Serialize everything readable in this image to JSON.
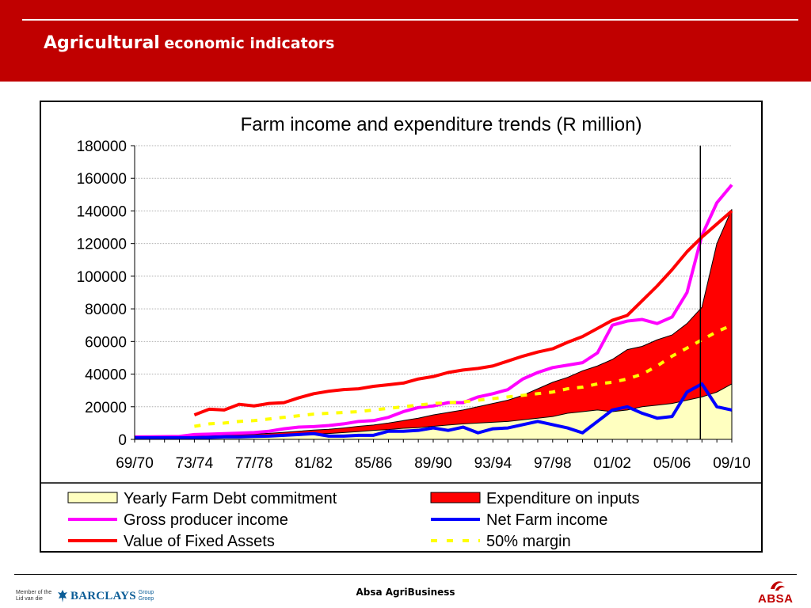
{
  "slide": {
    "title_main": "Agricultural",
    "title_sub": "economic indicators",
    "footer_text": "Absa AgriBusiness",
    "barclays_member": "Member of the\nLid van die",
    "barclays_name": "BARCLAYS",
    "barclays_group": "Group\nGroep",
    "absa_logo": "ABSA",
    "colors": {
      "header": "#c00000",
      "barclays_blue": "#0b5d97"
    }
  },
  "chart_data": {
    "type": "line",
    "title": "Farm income and expenditure trends (R million)",
    "xlabel": "",
    "ylabel": "",
    "ylim": [
      0,
      180000
    ],
    "yticks": [
      0,
      20000,
      40000,
      60000,
      80000,
      100000,
      120000,
      140000,
      160000,
      180000
    ],
    "xticks": [
      "69/70",
      "73/74",
      "77/78",
      "81/82",
      "85/86",
      "89/90",
      "93/94",
      "97/98",
      "01/02",
      "05/06",
      "09/10"
    ],
    "categories": [
      "69/70",
      "70/71",
      "71/72",
      "72/73",
      "73/74",
      "74/75",
      "75/76",
      "76/77",
      "77/78",
      "78/79",
      "79/80",
      "80/81",
      "81/82",
      "82/83",
      "83/84",
      "84/85",
      "85/86",
      "86/87",
      "87/88",
      "88/89",
      "89/90",
      "90/91",
      "91/92",
      "92/93",
      "93/94",
      "94/95",
      "95/96",
      "96/97",
      "97/98",
      "98/99",
      "99/00",
      "00/01",
      "01/02",
      "02/03",
      "03/04",
      "04/05",
      "05/06",
      "06/07",
      "07/08",
      "08/09",
      "09/10"
    ],
    "marker_line_at": "07/08",
    "grid": "horizontal",
    "legend_position": "bottom",
    "series": [
      {
        "name": "Yearly Farm Debt commitment",
        "kind": "area",
        "color": "#ffffc0",
        "values": [
          1000,
          1000,
          1000,
          1000,
          1200,
          1300,
          1500,
          1700,
          1900,
          2100,
          2400,
          2800,
          3200,
          3600,
          4200,
          4800,
          5500,
          6000,
          6800,
          7200,
          8000,
          8800,
          9500,
          10000,
          10500,
          11000,
          12000,
          13000,
          14000,
          16000,
          17000,
          18000,
          17000,
          18000,
          20000,
          21000,
          22000,
          24000,
          26000,
          29000,
          34000
        ]
      },
      {
        "name": "Expenditure on inputs",
        "kind": "area",
        "color": "#ff0000",
        "values": [
          1500,
          1600,
          1700,
          1800,
          2000,
          2300,
          2600,
          3000,
          3300,
          3700,
          4300,
          5000,
          5700,
          6200,
          7000,
          8000,
          8800,
          10000,
          11500,
          13000,
          15000,
          16500,
          18000,
          20000,
          22000,
          24000,
          27000,
          31000,
          35000,
          38000,
          42000,
          45000,
          49000,
          55000,
          57000,
          61000,
          64000,
          71000,
          81000,
          120000,
          141000
        ]
      },
      {
        "name": "Gross producer income",
        "kind": "line",
        "color": "#ff00ff",
        "values": [
          1500,
          1600,
          1700,
          1800,
          3000,
          3200,
          3500,
          3800,
          4200,
          5000,
          6500,
          7500,
          7800,
          8500,
          9500,
          11000,
          11500,
          13500,
          17000,
          19500,
          20500,
          22500,
          22500,
          26000,
          28000,
          30500,
          37000,
          41000,
          44000,
          45500,
          47000,
          53000,
          70000,
          72500,
          73500,
          71000,
          75000,
          90000,
          125000,
          145000,
          156000
        ]
      },
      {
        "name": "Net Farm income",
        "kind": "line",
        "color": "#0000ff",
        "values": [
          1000,
          1000,
          1000,
          1000,
          1000,
          1200,
          1500,
          1500,
          1800,
          2000,
          2500,
          3000,
          3500,
          2000,
          2000,
          2500,
          2500,
          5000,
          5000,
          5500,
          7000,
          5500,
          7500,
          4000,
          6500,
          7000,
          9000,
          11000,
          9000,
          7000,
          4000,
          11000,
          18000,
          20000,
          16000,
          13000,
          14000,
          29000,
          34000,
          20000,
          18000
        ]
      },
      {
        "name": "Value of Fixed Assets",
        "kind": "line",
        "color": "#ff0000",
        "values": [
          null,
          null,
          null,
          null,
          15000,
          18500,
          18000,
          21500,
          20500,
          22000,
          22500,
          25500,
          28000,
          29500,
          30500,
          31000,
          32500,
          33500,
          34500,
          37000,
          38500,
          41000,
          42500,
          43500,
          45000,
          48000,
          51000,
          53500,
          55500,
          59500,
          63000,
          68000,
          73000,
          76000,
          85000,
          94000,
          104000,
          115000,
          124000,
          132000,
          140000
        ]
      },
      {
        "name": "50% margin",
        "kind": "dashed",
        "color": "#ffff00",
        "values": [
          null,
          null,
          null,
          null,
          8000,
          9500,
          10000,
          11000,
          11500,
          12500,
          13500,
          14500,
          15500,
          16000,
          16500,
          17000,
          18000,
          19000,
          20000,
          21000,
          22000,
          22500,
          23000,
          24000,
          25000,
          26000,
          27000,
          28000,
          29000,
          31000,
          32000,
          34000,
          35000,
          37000,
          40000,
          45000,
          51000,
          56000,
          61000,
          66000,
          70000
        ]
      }
    ],
    "legend": [
      {
        "label": "Yearly Farm Debt commitment",
        "symbol": "box",
        "color": "#ffffc0"
      },
      {
        "label": "Expenditure on inputs",
        "symbol": "box",
        "color": "#ff0000"
      },
      {
        "label": "Gross producer income",
        "symbol": "line",
        "color": "#ff00ff"
      },
      {
        "label": "Net Farm income",
        "symbol": "line",
        "color": "#0000ff"
      },
      {
        "label": "Value of Fixed Assets",
        "symbol": "line",
        "color": "#ff0000"
      },
      {
        "label": "50% margin",
        "symbol": "dashed",
        "color": "#ffff00"
      }
    ]
  }
}
